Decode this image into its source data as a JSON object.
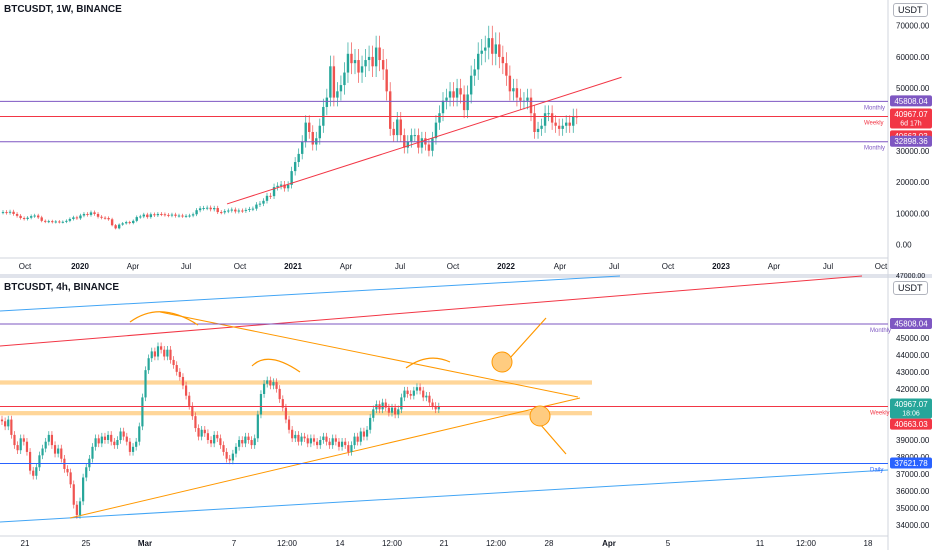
{
  "chart_data": [
    {
      "type": "candlestick",
      "title": "BTCUSDT, 1W, BINANCE",
      "currency": "USDT",
      "y_ticks": [
        0,
        10000,
        20000,
        30000,
        40000,
        50000,
        60000,
        70000
      ],
      "y_tick_labels": [
        "0.00",
        "10000.00",
        "20000.00",
        "30000.00",
        "40000.00",
        "50000.00",
        "60000.00",
        "70000.00"
      ],
      "y_tick_next_label": "47000.00",
      "x_tick_labels": [
        "Oct",
        "2020",
        "Apr",
        "Jul",
        "Oct",
        "2021",
        "Apr",
        "Jul",
        "Oct",
        "2022",
        "Apr",
        "Jul",
        "Oct",
        "2023",
        "Apr",
        "Jul",
        "Oct"
      ],
      "bold_x_ticks": [
        "2020",
        "2021",
        "2022",
        "2023"
      ],
      "ylim": [
        -3000,
        75000
      ],
      "candles": [
        [
          10300,
          10400
        ],
        [
          10400,
          10200
        ],
        [
          10200,
          10500
        ],
        [
          10500,
          9800
        ],
        [
          9800,
          9200
        ],
        [
          9200,
          8500
        ],
        [
          8500,
          8200
        ],
        [
          8200,
          8600
        ],
        [
          8600,
          9100
        ],
        [
          9100,
          9300
        ],
        [
          9300,
          8700
        ],
        [
          8700,
          7600
        ],
        [
          7600,
          7300
        ],
        [
          7300,
          7500
        ],
        [
          7500,
          7200
        ],
        [
          7200,
          7400
        ],
        [
          7400,
          7200
        ],
        [
          7200,
          7300
        ],
        [
          7300,
          7600
        ],
        [
          7600,
          8200
        ],
        [
          8200,
          8700
        ],
        [
          8700,
          8400
        ],
        [
          8400,
          9300
        ],
        [
          9300,
          9800
        ],
        [
          9800,
          9500
        ],
        [
          9500,
          10300
        ],
        [
          10300,
          9800
        ],
        [
          9800,
          8900
        ],
        [
          8900,
          8600
        ],
        [
          8600,
          8500
        ],
        [
          8500,
          8100
        ],
        [
          8100,
          6200
        ],
        [
          6200,
          5200
        ],
        [
          5200,
          6400
        ],
        [
          6400,
          6800
        ],
        [
          6800,
          7200
        ],
        [
          7200,
          6900
        ],
        [
          6900,
          7600
        ],
        [
          7600,
          8800
        ],
        [
          8800,
          9000
        ],
        [
          9000,
          9600
        ],
        [
          9600,
          8800
        ],
        [
          8800,
          9700
        ],
        [
          9700,
          9400
        ],
        [
          9400,
          9800
        ],
        [
          9800,
          9700
        ],
        [
          9700,
          9500
        ],
        [
          9500,
          9300
        ],
        [
          9300,
          9600
        ],
        [
          9600,
          9200
        ],
        [
          9200,
          9300
        ],
        [
          9300,
          9100
        ],
        [
          9100,
          9200
        ],
        [
          9200,
          9300
        ],
        [
          9300,
          9700
        ],
        [
          9700,
          11000
        ],
        [
          11000,
          11600
        ],
        [
          11600,
          11700
        ],
        [
          11700,
          11800
        ],
        [
          11800,
          11300
        ],
        [
          11300,
          11700
        ],
        [
          11700,
          10400
        ],
        [
          10400,
          10300
        ],
        [
          10300,
          10700
        ],
        [
          10700,
          10900
        ],
        [
          10900,
          11200
        ],
        [
          11200,
          10600
        ],
        [
          10600,
          10900
        ],
        [
          10900,
          10800
        ],
        [
          10800,
          11100
        ],
        [
          11100,
          11400
        ],
        [
          11400,
          11500
        ],
        [
          11500,
          12800
        ],
        [
          12800,
          13100
        ],
        [
          13100,
          14000
        ],
        [
          14000,
          15600
        ],
        [
          15600,
          15500
        ],
        [
          15500,
          18400
        ],
        [
          18400,
          18800
        ],
        [
          18800,
          19200
        ],
        [
          19200,
          18000
        ],
        [
          18000,
          19100
        ],
        [
          19100,
          23500
        ],
        [
          23500,
          26400
        ],
        [
          26400,
          29000
        ],
        [
          29000,
          33000
        ],
        [
          33000,
          39000
        ],
        [
          39000,
          36000
        ],
        [
          36000,
          32000
        ],
        [
          32000,
          34000
        ],
        [
          34000,
          38000
        ],
        [
          38000,
          44000
        ],
        [
          44000,
          47000
        ],
        [
          47000,
          57000
        ],
        [
          57000,
          47000
        ],
        [
          47000,
          49000
        ],
        [
          49000,
          51000
        ],
        [
          51000,
          55000
        ],
        [
          55000,
          61000
        ],
        [
          61000,
          58000
        ],
        [
          58000,
          59000
        ],
        [
          59000,
          55000
        ],
        [
          55000,
          57000
        ],
        [
          57000,
          59000
        ],
        [
          59000,
          60000
        ],
        [
          60000,
          57000
        ],
        [
          57000,
          63000
        ],
        [
          63000,
          59000
        ],
        [
          59000,
          56000
        ],
        [
          56000,
          49000
        ],
        [
          49000,
          37000
        ],
        [
          37000,
          35000
        ],
        [
          35000,
          40000
        ],
        [
          40000,
          35000
        ],
        [
          35000,
          31000
        ],
        [
          31000,
          33000
        ],
        [
          33000,
          35000
        ],
        [
          35000,
          35000
        ],
        [
          35000,
          31000
        ],
        [
          31000,
          34000
        ],
        [
          34000,
          32000
        ],
        [
          32000,
          30000
        ],
        [
          30000,
          34000
        ],
        [
          34000,
          39000
        ],
        [
          39000,
          42000
        ],
        [
          42000,
          46000
        ],
        [
          46000,
          47000
        ],
        [
          47000,
          49000
        ],
        [
          49000,
          47000
        ],
        [
          47000,
          50000
        ],
        [
          50000,
          48000
        ],
        [
          48000,
          43000
        ],
        [
          43000,
          48000
        ],
        [
          48000,
          54000
        ],
        [
          54000,
          56000
        ],
        [
          56000,
          61000
        ],
        [
          61000,
          62000
        ],
        [
          62000,
          63000
        ],
        [
          63000,
          66000
        ],
        [
          66000,
          61000
        ],
        [
          61000,
          64000
        ],
        [
          64000,
          60000
        ],
        [
          60000,
          58000
        ],
        [
          58000,
          54000
        ],
        [
          54000,
          49000
        ],
        [
          49000,
          50000
        ],
        [
          50000,
          47000
        ],
        [
          47000,
          46000
        ],
        [
          46000,
          46000
        ],
        [
          46000,
          47000
        ],
        [
          47000,
          42000
        ],
        [
          42000,
          36000
        ],
        [
          36000,
          37000
        ],
        [
          37000,
          38000
        ],
        [
          38000,
          42000
        ],
        [
          42000,
          42000
        ],
        [
          42000,
          39000
        ],
        [
          39000,
          38000
        ],
        [
          38000,
          37000
        ],
        [
          37000,
          38000
        ],
        [
          38000,
          39000
        ],
        [
          39000,
          38000
        ],
        [
          38000,
          41000
        ],
        [
          41000,
          40967
        ]
      ],
      "horizontal_lines": [
        {
          "value": 45808.04,
          "label": "45808.04",
          "tag": "Monthly",
          "color": "#7e57c2"
        },
        {
          "value": 40967.07,
          "label": "40967.07",
          "countdown": "6d 17h",
          "tag": "Weekly",
          "color": "#f23645"
        },
        {
          "value": 40663.03,
          "label": "40663.03",
          "color": "#f23645"
        },
        {
          "value": 32898.36,
          "label": "32898.36",
          "tag": "Monthly",
          "color": "#7e57c2"
        }
      ],
      "trendline": {
        "from": {
          "x_week": 37,
          "y": 13000
        },
        "to": {
          "x_week": 191,
          "y": 53500
        },
        "color": "#f23645"
      }
    },
    {
      "type": "candlestick",
      "title": "BTCUSDT, 4h, BINANCE",
      "currency": "USDT",
      "y_ticks": [
        34000,
        35000,
        36000,
        37000,
        38000,
        39000,
        40000,
        41000,
        42000,
        43000,
        44000,
        45000
      ],
      "y_tick_labels": [
        "34000.00",
        "35000.00",
        "36000.00",
        "37000.00",
        "38000.00",
        "39000.00",
        "40000.00",
        "41000.00",
        "42000.00",
        "43000.00",
        "44000.00",
        "45000.00"
      ],
      "x_tick_labels": [
        "21",
        "25",
        "Mar",
        "7",
        "12:00",
        "14",
        "12:00",
        "21",
        "12:00",
        "28",
        "Apr",
        "5",
        "11",
        "12:00",
        "18"
      ],
      "bold_x_ticks": [
        "Mar",
        "Apr"
      ],
      "ylim": [
        33600,
        47100
      ],
      "candles": [
        [
          40200,
          40100
        ],
        [
          40100,
          39800
        ],
        [
          39800,
          40200
        ],
        [
          40200,
          39300
        ],
        [
          39300,
          38700
        ],
        [
          38700,
          38400
        ],
        [
          38400,
          39100
        ],
        [
          39100,
          38900
        ],
        [
          38900,
          38300
        ],
        [
          38300,
          37200
        ],
        [
          37200,
          36900
        ],
        [
          36900,
          37400
        ],
        [
          37400,
          38100
        ],
        [
          38100,
          38500
        ],
        [
          38500,
          38900
        ],
        [
          38900,
          39300
        ],
        [
          39300,
          38700
        ],
        [
          38700,
          38200
        ],
        [
          38200,
          38500
        ],
        [
          38500,
          37900
        ],
        [
          37900,
          37300
        ],
        [
          37300,
          37100
        ],
        [
          37100,
          36400
        ],
        [
          36400,
          35200
        ],
        [
          35200,
          34600
        ],
        [
          34600,
          35400
        ],
        [
          35400,
          36800
        ],
        [
          36800,
          37400
        ],
        [
          37400,
          37900
        ],
        [
          37900,
          38600
        ],
        [
          38600,
          39100
        ],
        [
          39100,
          38800
        ],
        [
          38800,
          39200
        ],
        [
          39200,
          39000
        ],
        [
          39000,
          39300
        ],
        [
          39300,
          38900
        ],
        [
          38900,
          38700
        ],
        [
          38700,
          39000
        ],
        [
          39000,
          39500
        ],
        [
          39500,
          39200
        ],
        [
          39200,
          38900
        ],
        [
          38900,
          38300
        ],
        [
          38300,
          38600
        ],
        [
          38600,
          38900
        ],
        [
          38900,
          39800
        ],
        [
          39800,
          41500
        ],
        [
          41500,
          43100
        ],
        [
          43100,
          43800
        ],
        [
          43800,
          44200
        ],
        [
          44200,
          43900
        ],
        [
          43900,
          44500
        ],
        [
          44500,
          44300
        ],
        [
          44300,
          43900
        ],
        [
          43900,
          44300
        ],
        [
          44300,
          43700
        ],
        [
          43700,
          43400
        ],
        [
          43400,
          43000
        ],
        [
          43000,
          42700
        ],
        [
          42700,
          42200
        ],
        [
          42200,
          41600
        ],
        [
          41600,
          41000
        ],
        [
          41000,
          40400
        ],
        [
          40400,
          39700
        ],
        [
          39700,
          39200
        ],
        [
          39200,
          39600
        ],
        [
          39600,
          39400
        ],
        [
          39400,
          39000
        ],
        [
          39000,
          38800
        ],
        [
          38800,
          39300
        ],
        [
          39300,
          39100
        ],
        [
          39100,
          38700
        ],
        [
          38700,
          38300
        ],
        [
          38300,
          37900
        ],
        [
          37900,
          37800
        ],
        [
          37800,
          38200
        ],
        [
          38200,
          38600
        ],
        [
          38600,
          39000
        ],
        [
          39000,
          38800
        ],
        [
          38800,
          39200
        ],
        [
          39200,
          39000
        ],
        [
          39000,
          38700
        ],
        [
          38700,
          39100
        ],
        [
          39100,
          40500
        ],
        [
          40500,
          41700
        ],
        [
          41700,
          42300
        ],
        [
          42300,
          42500
        ],
        [
          42500,
          42200
        ],
        [
          42200,
          42400
        ],
        [
          42400,
          42000
        ],
        [
          42000,
          41400
        ],
        [
          41400,
          40900
        ],
        [
          40900,
          40200
        ],
        [
          40200,
          39600
        ],
        [
          39600,
          39100
        ],
        [
          39100,
          39300
        ],
        [
          39300,
          38900
        ],
        [
          38900,
          39200
        ],
        [
          39200,
          39100
        ],
        [
          39100,
          38800
        ],
        [
          38800,
          39100
        ],
        [
          39100,
          38900
        ],
        [
          38900,
          38700
        ],
        [
          38700,
          39000
        ],
        [
          39000,
          39200
        ],
        [
          39200,
          38900
        ],
        [
          38900,
          38700
        ],
        [
          38700,
          39100
        ],
        [
          39100,
          38900
        ],
        [
          38900,
          38600
        ],
        [
          38600,
          38900
        ],
        [
          38900,
          38700
        ],
        [
          38700,
          38300
        ],
        [
          38300,
          38700
        ],
        [
          38700,
          39200
        ],
        [
          39200,
          38900
        ],
        [
          38900,
          39500
        ],
        [
          39500,
          39200
        ],
        [
          39200,
          39600
        ],
        [
          39600,
          40300
        ],
        [
          40300,
          40800
        ],
        [
          40800,
          41100
        ],
        [
          41100,
          40800
        ],
        [
          40800,
          41200
        ],
        [
          41200,
          40900
        ],
        [
          40900,
          40600
        ],
        [
          40600,
          40900
        ],
        [
          40900,
          40500
        ],
        [
          40500,
          40800
        ],
        [
          40800,
          41500
        ],
        [
          41500,
          41900
        ],
        [
          41900,
          41700
        ],
        [
          41700,
          41600
        ],
        [
          41600,
          41900
        ],
        [
          41900,
          42100
        ],
        [
          42100,
          41900
        ],
        [
          41900,
          41500
        ],
        [
          41500,
          41600
        ],
        [
          41600,
          41200
        ],
        [
          41200,
          41000
        ],
        [
          41000,
          40800
        ],
        [
          40800,
          40967
        ]
      ],
      "horizontal_lines": [
        {
          "value": 45808.04,
          "label": "45808.04",
          "tag": "Monthly",
          "color": "#7e57c2"
        },
        {
          "value": 40967.07,
          "label": "40967.07",
          "countdown": "18:06",
          "tag": "Weekly",
          "color": "#f23645"
        },
        {
          "value": 40663.03,
          "label": "40663.03",
          "color": "#f23645"
        },
        {
          "value": 37621.78,
          "label": "37621.78",
          "tag": "Daily",
          "color": "#2962ff"
        }
      ],
      "zones": [
        {
          "from": 42250,
          "to": 42500,
          "color": "#ffcc80"
        },
        {
          "from": 40450,
          "to": 40700,
          "color": "#ffcc80"
        }
      ]
    }
  ]
}
